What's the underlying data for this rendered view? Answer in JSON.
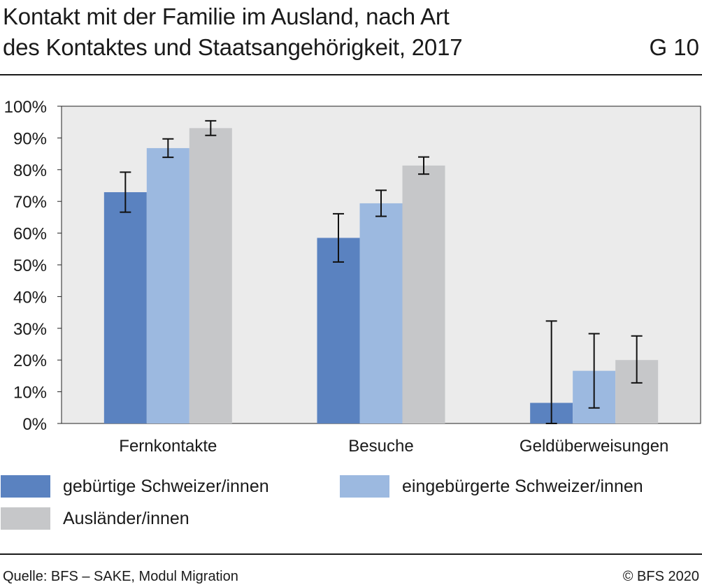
{
  "header": {
    "title_line1": "Kontakt mit der Familie im Ausland, nach Art",
    "title_line2": "des Kontaktes und Staatsangehörigkeit, 2017",
    "code": "G 10"
  },
  "footer": {
    "source": "Quelle: BFS – SAKE, Modul Migration",
    "copyright": "© BFS 2020"
  },
  "chart_data": {
    "type": "bar",
    "title": "Kontakt mit der Familie im Ausland, nach Art des Kontaktes und Staatsangehörigkeit, 2017",
    "categories": [
      "Fernkontakte",
      "Besuche",
      "Geldüberweisungen"
    ],
    "ylim": [
      0,
      100
    ],
    "yticks": [
      "0%",
      "10%",
      "20%",
      "30%",
      "40%",
      "50%",
      "60%",
      "70%",
      "80%",
      "90%",
      "100%"
    ],
    "grid": false,
    "legend_position": "bottom",
    "series": [
      {
        "name": "gebürtige Schweizer/innen",
        "color": "#5a82c0",
        "values": [
          72.9,
          58.5,
          6.5
        ],
        "error_low": [
          66.6,
          50.9,
          0.0
        ],
        "error_high": [
          79.2,
          66.1,
          32.3
        ]
      },
      {
        "name": "eingebürgerte Schweizer/innen",
        "color": "#9cb9e0",
        "values": [
          86.8,
          69.4,
          16.6
        ],
        "error_low": [
          83.9,
          65.3,
          4.9
        ],
        "error_high": [
          89.7,
          73.5,
          28.3
        ]
      },
      {
        "name": "Ausländer/innen",
        "color": "#c6c7c9",
        "values": [
          93.1,
          81.3,
          20.0
        ],
        "error_low": [
          90.8,
          78.6,
          12.8
        ],
        "error_high": [
          95.4,
          84.0,
          27.6
        ]
      }
    ]
  }
}
